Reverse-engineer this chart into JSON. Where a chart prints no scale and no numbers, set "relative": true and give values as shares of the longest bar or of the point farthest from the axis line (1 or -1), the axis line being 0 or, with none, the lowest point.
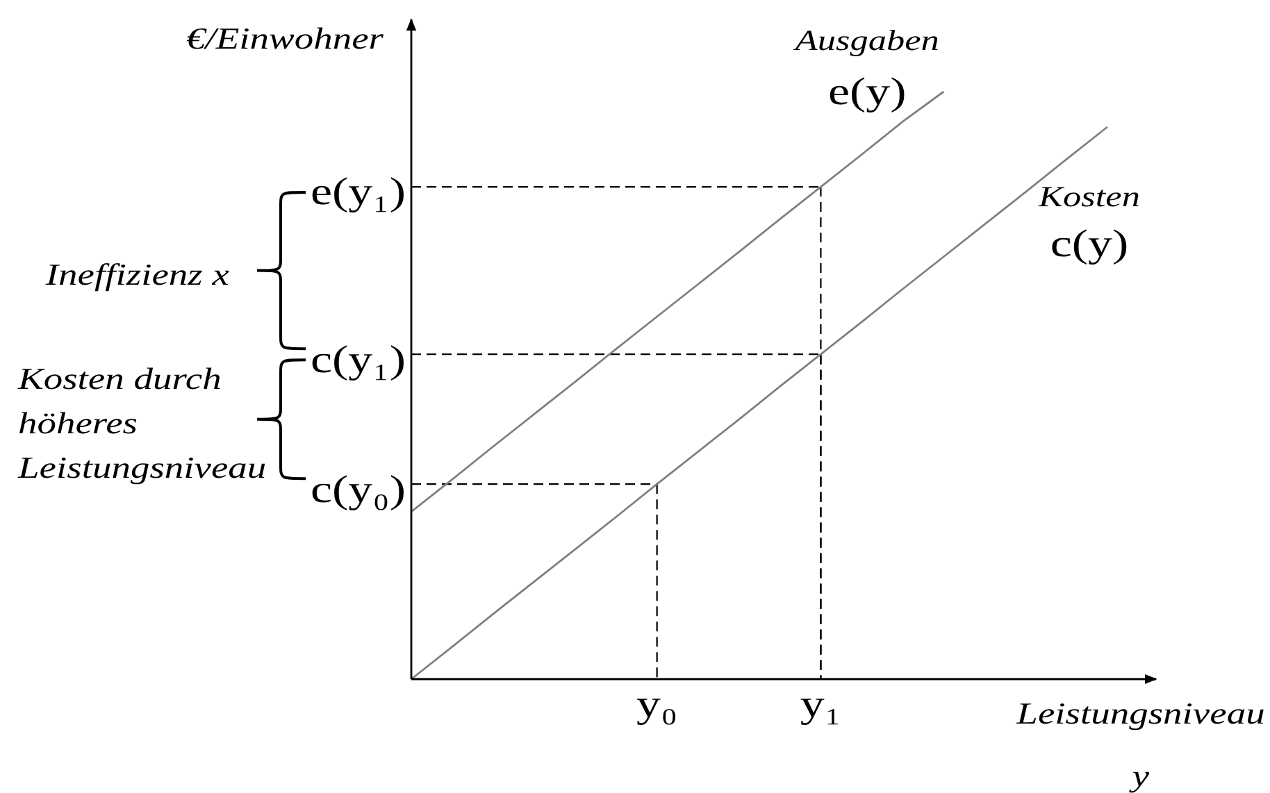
{
  "chart_data": {
    "type": "line",
    "relative": true,
    "ylabel": "€/Einwohner",
    "xlabel": "Leistungsniveau y",
    "categories": [
      null,
      null,
      null,
      null,
      null,
      null,
      "y₀",
      null,
      null,
      null,
      "y₁",
      null,
      null,
      null,
      null,
      null,
      null,
      null
    ],
    "series": [
      {
        "name": "Ausgaben e(y)",
        "color": "#808080",
        "values": [
          0.285,
          0.34,
          0.396,
          0.451,
          0.506,
          0.562,
          0.617,
          0.672,
          0.727,
          0.783,
          0.838,
          0.893,
          0.949,
          1,
          null,
          null,
          null,
          null
        ]
      },
      {
        "name": "Kosten c(y)",
        "color": "#808080",
        "values": [
          0,
          0.055,
          0.111,
          0.166,
          0.221,
          0.276,
          0.332,
          0.387,
          0.442,
          0.498,
          0.553,
          0.608,
          0.664,
          0.719,
          0.774,
          0.829,
          0.885,
          0.94
        ]
      }
    ],
    "annotations": [
      {
        "text": "e(y₁)",
        "x": "y₁",
        "y": 0.838
      },
      {
        "text": "c(y₁)",
        "x": "y₁",
        "y": 0.553
      },
      {
        "text": "c(y₀)",
        "x": "y₀",
        "y": 0.332
      },
      "Ineffizienz x",
      "Kosten durch höheres Leistungsniveau"
    ]
  }
}
